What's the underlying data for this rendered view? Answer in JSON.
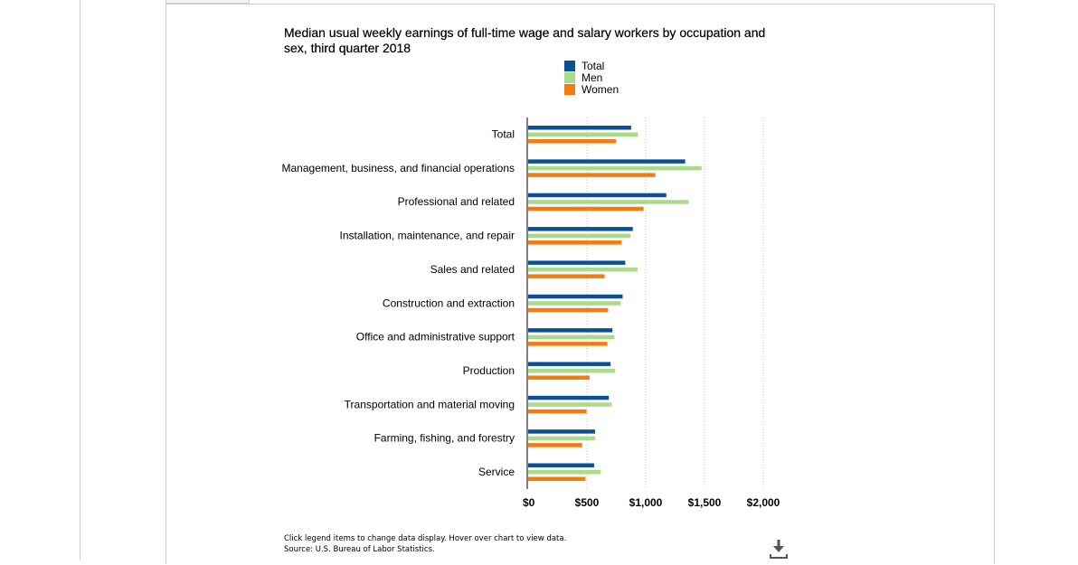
{
  "chart_data": {
    "type": "bar",
    "orientation": "horizontal",
    "title": "Median usual weekly earnings of full-time wage and salary workers by occupation and sex, third quarter 2018",
    "categories": [
      "Total",
      "Management, business, and financial operations",
      "Professional and related",
      "Installation, maintenance, and repair",
      "Sales and related",
      "Construction and extraction",
      "Office and administrative support",
      "Production",
      "Transportation and material moving",
      "Farming, fishing, and forestry",
      "Service"
    ],
    "series": [
      {
        "name": "Total",
        "color": "#0b4f96",
        "values": [
          876,
          1336,
          1175,
          890,
          826,
          804,
          717,
          701,
          686,
          569,
          561
        ]
      },
      {
        "name": "Men",
        "color": "#a8dc8a",
        "values": [
          934,
          1475,
          1365,
          871,
          930,
          788,
          734,
          740,
          712,
          569,
          618
        ]
      },
      {
        "name": "Women",
        "color": "#f47b12",
        "values": [
          747,
          1082,
          982,
          795,
          650,
          680,
          674,
          522,
          497,
          459,
          487
        ]
      }
    ],
    "x_ticks": [
      "$0",
      "$500",
      "$1,000",
      "$1,500",
      "$2,000"
    ],
    "xlim": [
      0,
      2000
    ],
    "grid": "vertical dotted",
    "legend_position": "top"
  },
  "legend": {
    "items": [
      {
        "label": "Total",
        "color": "#0b4f96"
      },
      {
        "label": "Men",
        "color": "#a8dc8a"
      },
      {
        "label": "Women",
        "color": "#f47b12"
      }
    ]
  },
  "footnote": {
    "line1": "Click legend items to change data display. Hover over chart to view data.",
    "line2": "Source: U.S. Bureau of Labor Statistics."
  },
  "icons": {
    "download": "download-icon"
  }
}
